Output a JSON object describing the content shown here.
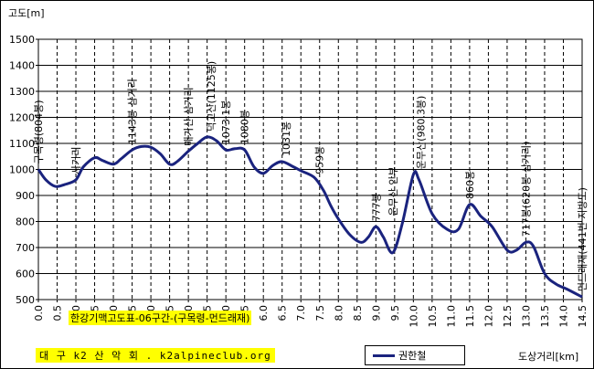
{
  "chart_data": {
    "type": "line",
    "title": "한강기맥고도표-06구간-(구목령-먼드래재)",
    "subtitle": "대 구 k2 산 악 회 . k2alpineclub.org",
    "ylabel": "고도[m]",
    "xlabel": "도상거리[km]",
    "xlim": [
      0,
      14.5
    ],
    "ylim": [
      500,
      1500
    ],
    "x_ticks": [
      "0.0",
      "0.5",
      "1.0",
      "1.5",
      "2.0",
      "2.5",
      "3.0",
      "3.5",
      "4.0",
      "4.5",
      "5.0",
      "5.5",
      "6.0",
      "6.5",
      "7.0",
      "7.5",
      "8.0",
      "8.5",
      "9.0",
      "9.5",
      "10.0",
      "10.5",
      "11.0",
      "11.5",
      "12.0",
      "12.5",
      "13.0",
      "13.5",
      "14.0",
      "14.5"
    ],
    "y_ticks": [
      "500",
      "600",
      "700",
      "800",
      "900",
      "1000",
      "1100",
      "1200",
      "1300",
      "1400",
      "1500"
    ],
    "grid": true,
    "legend_position": "bottom-right",
    "line_color": "#1a237e",
    "highlight_color": "#ffff00",
    "series": [
      {
        "name": "권한철",
        "x": [
          0.0,
          0.2,
          0.45,
          0.7,
          1.0,
          1.2,
          1.5,
          1.7,
          2.0,
          2.2,
          2.5,
          2.75,
          3.0,
          3.25,
          3.5,
          3.7,
          4.0,
          4.25,
          4.5,
          4.75,
          5.0,
          5.25,
          5.5,
          5.75,
          6.0,
          6.25,
          6.5,
          6.8,
          7.0,
          7.35,
          7.6,
          7.8,
          8.0,
          8.3,
          8.6,
          8.8,
          9.0,
          9.2,
          9.45,
          9.7,
          10.0,
          10.15,
          10.5,
          10.9,
          11.2,
          11.5,
          11.8,
          12.1,
          12.5,
          12.75,
          13.0,
          13.2,
          13.5,
          13.8,
          14.1,
          14.5
        ],
        "y": [
          1000,
          960,
          935,
          942,
          960,
          1010,
          1045,
          1035,
          1020,
          1040,
          1075,
          1088,
          1085,
          1060,
          1020,
          1030,
          1070,
          1100,
          1125,
          1110,
          1075,
          1080,
          1075,
          1010,
          985,
          1015,
          1030,
          1010,
          995,
          970,
          920,
          860,
          810,
          750,
          720,
          740,
          780,
          740,
          680,
          790,
          980,
          960,
          830,
          770,
          770,
          865,
          820,
          780,
          690,
          690,
          720,
          705,
          600,
          560,
          540,
          510
        ]
      }
    ],
    "annotations": [
      {
        "x": 0.0,
        "y": 1000,
        "text": "구목령(804봉)"
      },
      {
        "x": 1.0,
        "y": 960,
        "text": "사거리"
      },
      {
        "x": 2.5,
        "y": 1075,
        "text": "1143봉 삼거리"
      },
      {
        "x": 4.0,
        "y": 1070,
        "text": "매가산 삼거리"
      },
      {
        "x": 4.6,
        "y": 1125,
        "text": "덕고산(1125봉)"
      },
      {
        "x": 5.0,
        "y": 1075,
        "text": "1073.1봉"
      },
      {
        "x": 5.5,
        "y": 1075,
        "text": "1080봉"
      },
      {
        "x": 6.6,
        "y": 1030,
        "text": "1031봉"
      },
      {
        "x": 7.5,
        "y": 960,
        "text": "959봉"
      },
      {
        "x": 9.0,
        "y": 780,
        "text": "777봉"
      },
      {
        "x": 9.45,
        "y": 800,
        "text": "운무산 안부"
      },
      {
        "x": 10.2,
        "y": 980,
        "text": "운무산(980.3봉)"
      },
      {
        "x": 11.5,
        "y": 865,
        "text": "860봉"
      },
      {
        "x": 13.0,
        "y": 720,
        "text": "717봉(620봉 삼거리)"
      },
      {
        "x": 14.5,
        "y": 510,
        "text": "먼드래재(441번 지방도)"
      }
    ]
  }
}
